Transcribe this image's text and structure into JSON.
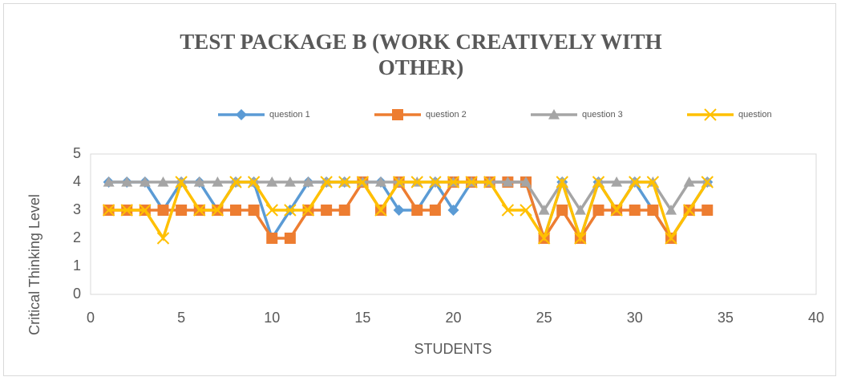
{
  "chart_data": {
    "type": "line",
    "title": "TEST PACKAGE B (WORK CREATIVELY WITH OTHER)",
    "xlabel": "STUDENTS",
    "ylabel": "Critical Thinking  Level",
    "x": [
      1,
      2,
      3,
      4,
      5,
      6,
      7,
      8,
      9,
      10,
      11,
      12,
      13,
      14,
      15,
      16,
      17,
      18,
      19,
      20,
      21,
      22,
      23,
      24,
      25,
      26,
      27,
      28,
      29,
      30,
      31,
      32,
      33,
      34
    ],
    "series": [
      {
        "name": "question 1",
        "color": "#5b9bd5",
        "marker": "diamond",
        "values": [
          4,
          4,
          4,
          3,
          4,
          4,
          3,
          4,
          4,
          2,
          3,
          4,
          4,
          4,
          4,
          4,
          3,
          3,
          4,
          3,
          4,
          4,
          4,
          4,
          2,
          4,
          2,
          4,
          3,
          4,
          3,
          2,
          3,
          4
        ]
      },
      {
        "name": "question 2",
        "color": "#ed7d31",
        "marker": "square",
        "values": [
          3,
          3,
          3,
          3,
          3,
          3,
          3,
          3,
          3,
          2,
          2,
          3,
          3,
          3,
          4,
          3,
          4,
          3,
          3,
          4,
          4,
          4,
          4,
          4,
          2,
          3,
          2,
          3,
          3,
          3,
          3,
          2,
          3,
          3
        ]
      },
      {
        "name": "question 3",
        "color": "#a5a5a5",
        "marker": "triangle",
        "values": [
          4,
          4,
          4,
          4,
          4,
          4,
          4,
          4,
          4,
          4,
          4,
          4,
          4,
          4,
          4,
          4,
          4,
          4,
          4,
          4,
          4,
          4,
          4,
          4,
          3,
          4,
          3,
          4,
          4,
          4,
          4,
          3,
          4,
          4
        ]
      },
      {
        "name": "question",
        "color": "#ffc000",
        "marker": "x",
        "values": [
          3,
          3,
          3,
          2,
          4,
          3,
          3,
          4,
          4,
          3,
          3,
          3,
          4,
          4,
          4,
          3,
          4,
          4,
          4,
          4,
          4,
          4,
          3,
          3,
          2,
          4,
          2,
          4,
          3,
          4,
          4,
          2,
          3,
          4
        ]
      }
    ],
    "xlim": [
      0,
      40
    ],
    "xticks": [
      0,
      5,
      10,
      15,
      20,
      25,
      30,
      35,
      40
    ],
    "ylim": [
      0,
      5
    ],
    "yticks": [
      0,
      1,
      2,
      3,
      4,
      5
    ],
    "grid": false,
    "legend": "top"
  }
}
